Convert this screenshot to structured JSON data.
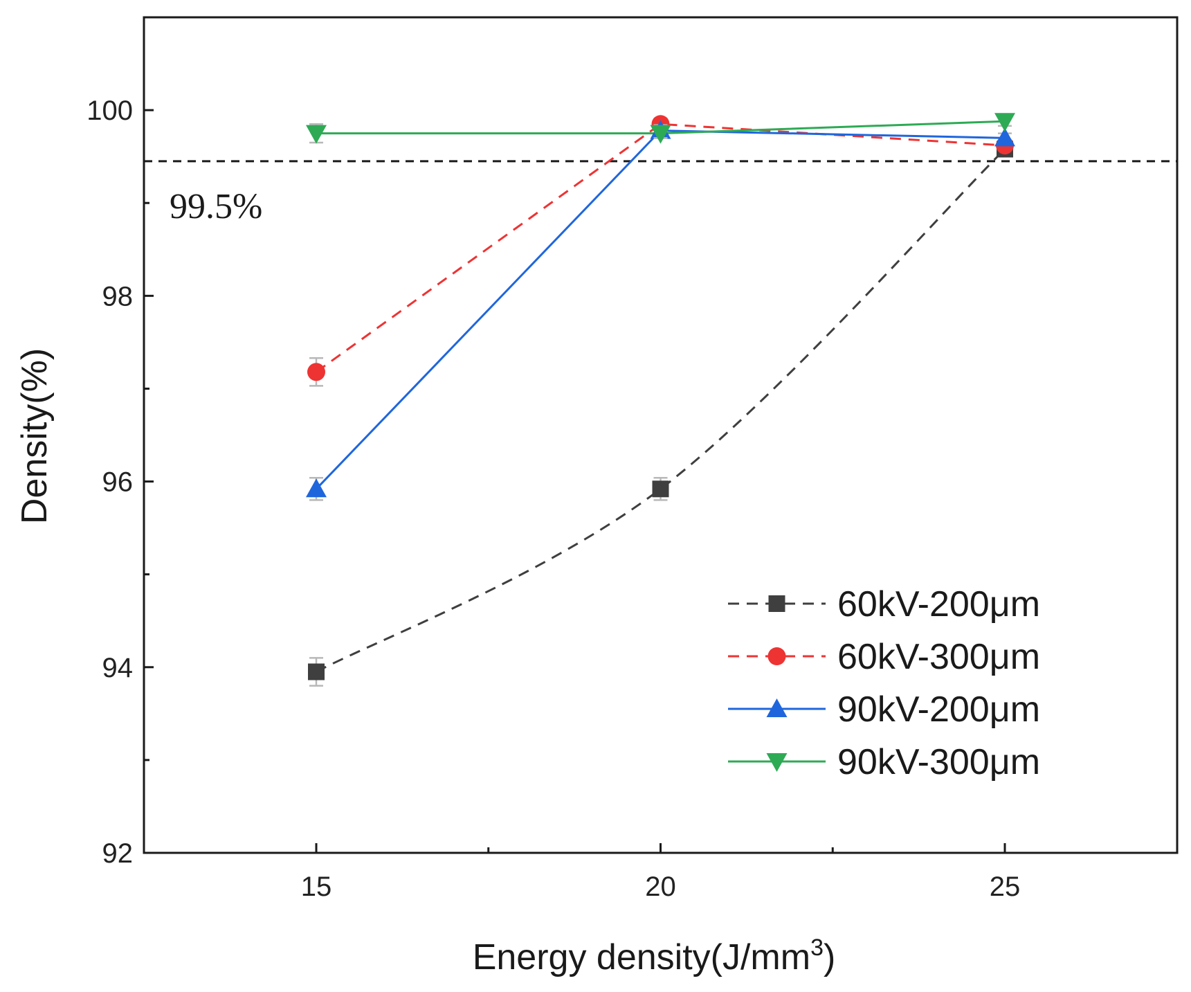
{
  "chart_data": {
    "type": "line",
    "xlabel": "Energy density(J/mm",
    "xlabel_superscript": "3",
    "xlabel_suffix": ")",
    "ylabel": "Density(%)",
    "xlim": [
      12.5,
      27.5
    ],
    "ylim": [
      92,
      101
    ],
    "x_ticks": [
      15,
      20,
      25
    ],
    "y_ticks": [
      92,
      94,
      96,
      98,
      100
    ],
    "x": [
      15,
      20,
      25
    ],
    "grid": false,
    "legend_position": "lower-right",
    "reference_line": {
      "y": 99.45,
      "label": "99.5%",
      "style": "dashed",
      "color": "#1a1a1a"
    },
    "series": [
      {
        "name": "60kV-200μm",
        "values": [
          93.95,
          95.92,
          99.58
        ],
        "errors": [
          0.15,
          0.12,
          0.06
        ],
        "color": "#3f3f3f",
        "marker": "square",
        "line": "dashed",
        "smooth": true
      },
      {
        "name": "60kV-300μm",
        "values": [
          97.18,
          99.85,
          99.62
        ],
        "errors": [
          0.15,
          0.06,
          0.05
        ],
        "color": "#ee3333",
        "marker": "circle",
        "line": "dashed",
        "smooth": false
      },
      {
        "name": "90kV-200μm",
        "values": [
          95.92,
          99.78,
          99.7
        ],
        "errors": [
          0.12,
          0.06,
          0.05
        ],
        "color": "#1f66dd",
        "marker": "triangle-up",
        "line": "solid",
        "smooth": false
      },
      {
        "name": "90kV-300μm",
        "values": [
          99.75,
          99.75,
          99.88
        ],
        "errors": [
          0.1,
          0.05,
          0.05
        ],
        "color": "#2eaa55",
        "marker": "triangle-down",
        "line": "solid",
        "smooth": false
      }
    ]
  }
}
